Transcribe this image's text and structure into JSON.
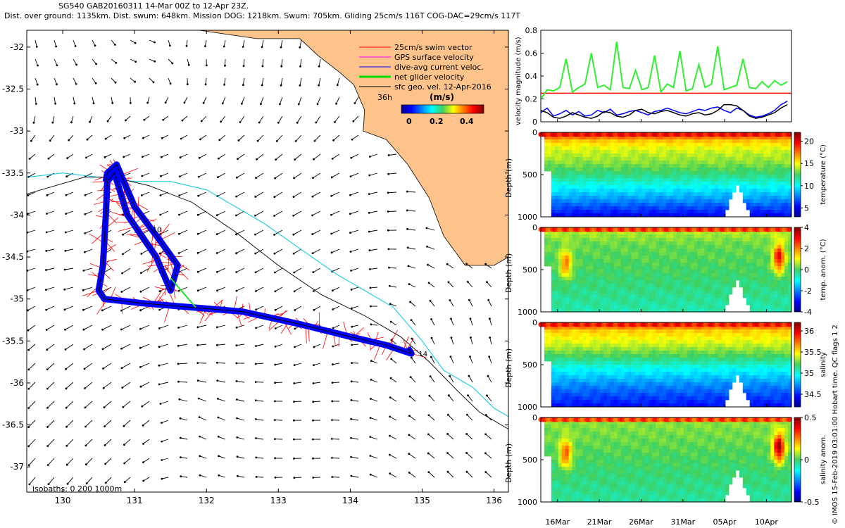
{
  "header": {
    "line1": "SG540 GAB20160311 14-Mar 00Z to 12-Apr 23Z.",
    "line2": "Dist. over ground: 1135km. Dist. swum: 648km. Mission DOG: 1218km. Swum: 705km. Gliding 25cm/s 116T COG-DAC=29cm/s 117T"
  },
  "credit": "© IMOS 15-Feb-2019 03:01:00 Hobart time. QC flags 1  2",
  "chart_data": [
    {
      "type": "scatter",
      "name": "map",
      "xlim": [
        129.5,
        136.2
      ],
      "ylim": [
        -37.3,
        -31.8
      ],
      "x_ticks": [
        "130",
        "131",
        "132",
        "133",
        "134",
        "135",
        "136"
      ],
      "y_ticks": [
        "-32",
        "-32.5",
        "-33",
        "-33.5",
        "-34",
        "-34.5",
        "-35",
        "-35.5",
        "-36",
        "-36.5",
        "-37"
      ],
      "legend": [
        {
          "label": "25cm/s swim vector",
          "color": "#ff0000"
        },
        {
          "label": "GPS surface velocity",
          "color": "#ff00ff"
        },
        {
          "label": "dive-avg current veloc.",
          "color": "#0000ff"
        },
        {
          "label": "net glider velocity",
          "color": "#00dd00"
        },
        {
          "label": "sfc geo. vel. 12-Apr-2016",
          "color": "#000000"
        }
      ],
      "scale_label": "36h",
      "colorbar_label": "(m/s)",
      "colorbar_ticks": [
        "0",
        "0.2",
        "0.4"
      ],
      "isobaths_label": "isobaths: 0  200  1000m",
      "track": [
        [
          130.6,
          -33.6
        ],
        [
          130.62,
          -33.5
        ],
        [
          130.75,
          -33.4
        ],
        [
          131.0,
          -33.9
        ],
        [
          131.35,
          -34.3
        ],
        [
          131.6,
          -34.6
        ],
        [
          131.5,
          -34.9
        ],
        [
          131.3,
          -34.5
        ],
        [
          130.9,
          -34.0
        ],
        [
          130.72,
          -33.5
        ],
        [
          130.62,
          -33.6
        ],
        [
          130.6,
          -34.0
        ],
        [
          130.56,
          -34.6
        ],
        [
          130.5,
          -34.9
        ],
        [
          130.58,
          -35.0
        ],
        [
          131.1,
          -35.05
        ],
        [
          131.8,
          -35.1
        ],
        [
          132.5,
          -35.15
        ],
        [
          133.3,
          -35.3
        ],
        [
          134.0,
          -35.45
        ],
        [
          134.5,
          -35.55
        ],
        [
          134.85,
          -35.65
        ],
        [
          134.8,
          -35.58
        ]
      ],
      "labels": [
        {
          "text": "10",
          "x": 131.25,
          "y": -34.2
        },
        {
          "text": "14",
          "x": 134.95,
          "y": -35.68
        }
      ],
      "coast": [
        [
          131.9,
          -31.8
        ],
        [
          132.7,
          -31.9
        ],
        [
          133.3,
          -31.9
        ],
        [
          133.55,
          -32.1
        ],
        [
          133.85,
          -32.3
        ],
        [
          134.05,
          -32.45
        ],
        [
          134.2,
          -32.75
        ],
        [
          134.18,
          -33.0
        ],
        [
          134.5,
          -33.1
        ],
        [
          134.8,
          -33.4
        ],
        [
          135.1,
          -33.8
        ],
        [
          135.3,
          -34.25
        ],
        [
          135.6,
          -34.6
        ],
        [
          136.0,
          -34.6
        ],
        [
          136.2,
          -34.5
        ]
      ],
      "isobath200": [
        [
          129.5,
          -33.55
        ],
        [
          130.0,
          -33.5
        ],
        [
          130.5,
          -33.55
        ],
        [
          131.0,
          -33.6
        ],
        [
          131.5,
          -33.6
        ],
        [
          132.0,
          -33.7
        ],
        [
          132.8,
          -34.1
        ],
        [
          133.3,
          -34.4
        ],
        [
          133.8,
          -34.7
        ],
        [
          134.2,
          -34.9
        ],
        [
          134.6,
          -35.1
        ],
        [
          135.0,
          -35.5
        ],
        [
          135.3,
          -35.85
        ],
        [
          135.7,
          -36.05
        ],
        [
          136.0,
          -36.3
        ],
        [
          136.2,
          -36.4
        ]
      ],
      "isobath1000": [
        [
          129.5,
          -33.75
        ],
        [
          129.9,
          -33.65
        ],
        [
          130.3,
          -33.55
        ],
        [
          130.7,
          -33.55
        ],
        [
          131.2,
          -33.65
        ],
        [
          131.8,
          -33.85
        ],
        [
          132.4,
          -34.2
        ],
        [
          133.0,
          -34.6
        ],
        [
          133.6,
          -34.95
        ],
        [
          134.2,
          -35.2
        ],
        [
          134.7,
          -35.45
        ],
        [
          135.1,
          -35.75
        ],
        [
          135.5,
          -36.1
        ],
        [
          135.8,
          -36.35
        ],
        [
          136.2,
          -36.55
        ]
      ]
    },
    {
      "type": "line",
      "name": "velocity",
      "ylabel": "velocity magnitude (m/s)",
      "ylim": [
        0,
        0.8
      ],
      "y_ticks": [
        "0",
        "0.2",
        "0.4",
        "0.6",
        "0.8"
      ],
      "x_ticks": [
        "16Mar",
        "21Mar",
        "26Mar",
        "31Mar",
        "05Apr",
        "10Apr"
      ],
      "threshold": 0.25,
      "series": [
        {
          "name": "net glider velocity",
          "color": "#33ee33",
          "values": [
            0.2,
            0.28,
            0.27,
            0.3,
            0.55,
            0.26,
            0.3,
            0.33,
            0.6,
            0.3,
            0.32,
            0.28,
            0.7,
            0.3,
            0.29,
            0.45,
            0.28,
            0.3,
            0.58,
            0.26,
            0.33,
            0.3,
            0.62,
            0.27,
            0.29,
            0.5,
            0.3,
            0.33,
            0.66,
            0.28,
            0.3,
            0.32,
            0.55,
            0.3,
            0.29,
            0.35,
            0.3,
            0.36,
            0.32,
            0.35
          ]
        },
        {
          "name": "dive-avg current veloc.",
          "color": "#0000ff",
          "values": [
            0.08,
            0.12,
            0.05,
            0.07,
            0.1,
            0.06,
            0.09,
            0.05,
            0.06,
            0.1,
            0.08,
            0.11,
            0.06,
            0.07,
            0.09,
            0.1,
            0.08,
            0.06,
            0.09,
            0.1,
            0.12,
            0.1,
            0.08,
            0.07,
            0.09,
            0.11,
            0.1,
            0.12,
            0.13,
            0.1,
            0.08,
            0.12,
            0.1,
            0.06,
            0.04,
            0.05,
            0.07,
            0.1,
            0.15,
            0.18
          ]
        },
        {
          "name": "sfc geo. vel.",
          "color": "#000000",
          "values": [
            0.1,
            0.08,
            0.04,
            0.03,
            0.05,
            0.08,
            0.06,
            0.04,
            0.03,
            0.05,
            0.09,
            0.08,
            0.05,
            0.04,
            0.06,
            0.1,
            0.11,
            0.08,
            0.07,
            0.09,
            0.1,
            0.08,
            0.06,
            0.05,
            0.07,
            0.08,
            0.06,
            0.07,
            0.1,
            0.15,
            0.15,
            0.14,
            0.1,
            0.05,
            0.03,
            0.04,
            0.06,
            0.08,
            0.12,
            0.15
          ]
        }
      ]
    },
    {
      "type": "heatmap",
      "name": "temperature",
      "ylabel": "Depth (m)",
      "clabel": "temperature (°C)",
      "clim": [
        3,
        22
      ],
      "cticks": [
        "5",
        "10",
        "15",
        "20"
      ],
      "yticks": [
        "0",
        "500",
        "1000"
      ],
      "surface": 19.5,
      "profile": [
        [
          0,
          19.5
        ],
        [
          100,
          16
        ],
        [
          200,
          14.5
        ],
        [
          350,
          13.5
        ],
        [
          500,
          12
        ],
        [
          650,
          10
        ],
        [
          800,
          8
        ],
        [
          1000,
          5
        ]
      ]
    },
    {
      "type": "heatmap",
      "name": "temp-anomaly",
      "ylabel": "Depth (m)",
      "clabel": "temp. anom. (°C)",
      "clim": [
        -4,
        4
      ],
      "cticks": [
        "4",
        "2",
        "0",
        "-2",
        "-4"
      ],
      "yticks": [
        "0",
        "500",
        "1000"
      ],
      "surface": 2.5,
      "profile": [
        [
          0,
          2.5
        ],
        [
          60,
          0.6
        ],
        [
          200,
          0.2
        ],
        [
          500,
          0
        ],
        [
          800,
          -0.3
        ],
        [
          1000,
          -0.5
        ]
      ],
      "blobs": [
        {
          "day": 3,
          "depth": 430,
          "value": 2.0
        },
        {
          "day": 28.5,
          "depth": 360,
          "value": 3.0
        }
      ]
    },
    {
      "type": "heatmap",
      "name": "salinity",
      "ylabel": "Depth (m)",
      "clabel": "salinity",
      "clim": [
        34.2,
        36.2
      ],
      "cticks": [
        "36",
        "35.5",
        "35",
        "34.5"
      ],
      "yticks": [
        "0",
        "500",
        "1000"
      ],
      "surface": 35.9,
      "profile": [
        [
          0,
          35.9
        ],
        [
          100,
          35.55
        ],
        [
          250,
          35.4
        ],
        [
          400,
          35.2
        ],
        [
          550,
          34.95
        ],
        [
          750,
          34.7
        ],
        [
          1000,
          34.45
        ]
      ]
    },
    {
      "type": "heatmap",
      "name": "salinity-anomaly",
      "ylabel": "Depth (m)",
      "clabel": "salinity anom.",
      "clim": [
        -0.5,
        0.5
      ],
      "cticks": [
        "0.5",
        "0",
        "-0.5"
      ],
      "yticks": [
        "0",
        "500",
        "1000"
      ],
      "surface": 0.3,
      "profile": [
        [
          0,
          0.3
        ],
        [
          60,
          0.05
        ],
        [
          500,
          0
        ],
        [
          1000,
          -0.05
        ]
      ],
      "blobs": [
        {
          "day": 3,
          "depth": 430,
          "value": 0.28
        },
        {
          "day": 28.5,
          "depth": 360,
          "value": 0.45
        }
      ]
    }
  ]
}
